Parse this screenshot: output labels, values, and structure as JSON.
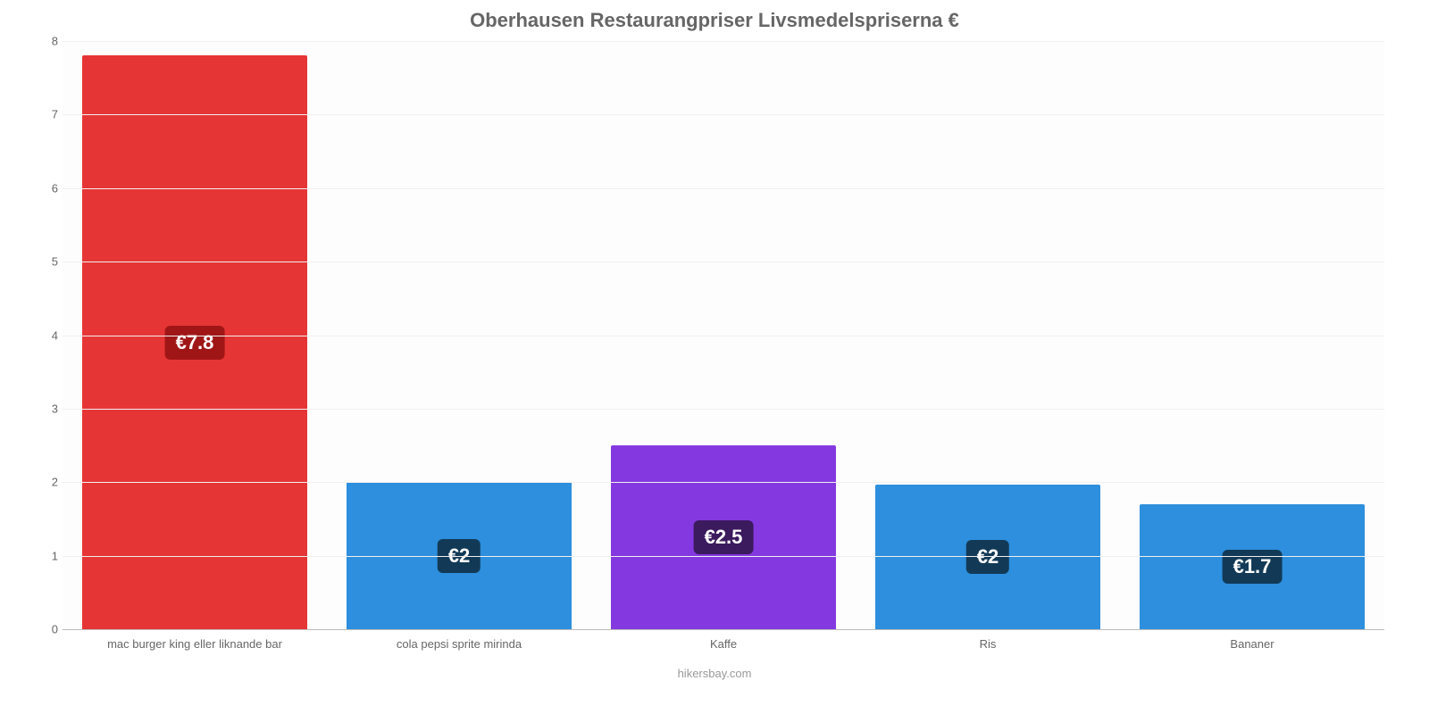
{
  "chart": {
    "type": "bar",
    "title": "Oberhausen Restaurangpriser Livsmedelspriserna €",
    "title_fontsize": 22,
    "title_color": "#666666",
    "footer_text": "hikersbay.com",
    "footer_color": "#999999",
    "background_color": "#ffffff",
    "plot_background": "#fdfdfd",
    "grid_color": "#f0f0f0",
    "axis_color": "#bbbbbb",
    "ymin": 0,
    "ymax": 8,
    "ytick_step": 1,
    "yticks": [
      0,
      1,
      2,
      3,
      4,
      5,
      6,
      7,
      8
    ],
    "ytick_labels": [
      "0",
      "1",
      "2",
      "3",
      "4",
      "5",
      "6",
      "7",
      "8"
    ],
    "bar_width_pct": 85,
    "value_label_fontsize": 22,
    "value_label_text_color": "#ffffff",
    "categories": [
      {
        "label": "mac burger king eller liknande bar",
        "value": 7.8,
        "value_label": "€7.8",
        "bar_color": "#e63535",
        "badge_bg": "#a01616"
      },
      {
        "label": "cola pepsi sprite mirinda",
        "value": 2.0,
        "value_label": "€2",
        "bar_color": "#2d8fdd",
        "badge_bg": "#123a57"
      },
      {
        "label": "Kaffe",
        "value": 2.5,
        "value_label": "€2.5",
        "bar_color": "#8439e0",
        "badge_bg": "#3b1a5e"
      },
      {
        "label": "Ris",
        "value": 1.97,
        "value_label": "€2",
        "bar_color": "#2d8fdd",
        "badge_bg": "#123a57"
      },
      {
        "label": "Bananer",
        "value": 1.7,
        "value_label": "€1.7",
        "bar_color": "#2d8fdd",
        "badge_bg": "#123a57"
      }
    ]
  }
}
